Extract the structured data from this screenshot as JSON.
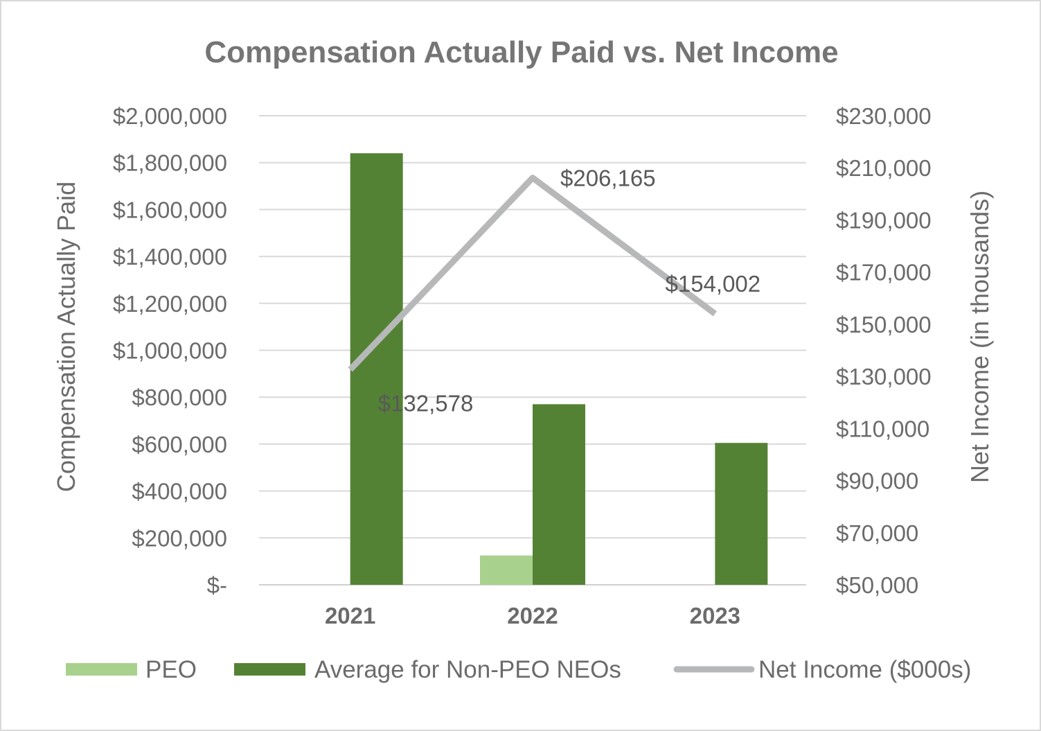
{
  "chart_data": {
    "type": "bar",
    "title": "Compensation Actually Paid vs. Net Income",
    "categories": [
      "2021",
      "2022",
      "2023"
    ],
    "y_left": {
      "label": "Compensation Actually Paid",
      "min": 0,
      "max": 2000000,
      "ticks": [
        "$-",
        "$200,000",
        "$400,000",
        "$600,000",
        "$800,000",
        "$1,000,000",
        "$1,200,000",
        "$1,400,000",
        "$1,600,000",
        "$1,800,000",
        "$2,000,000"
      ]
    },
    "y_right": {
      "label": "Net Income (in thousands)",
      "min": 50000,
      "max": 230000,
      "ticks": [
        "$50,000",
        "$70,000",
        "$90,000",
        "$110,000",
        "$130,000",
        "$150,000",
        "$170,000",
        "$190,000",
        "$210,000",
        "$230,000"
      ]
    },
    "grid": true,
    "legend_position": "bottom",
    "series": [
      {
        "name": "PEO",
        "type": "bar",
        "axis": "left",
        "color": "#a9d18e",
        "values": [
          0,
          125000,
          0
        ]
      },
      {
        "name": "Average for Non-PEO NEOs",
        "type": "bar",
        "axis": "left",
        "color": "#548235",
        "values": [
          1840000,
          770000,
          605000
        ]
      },
      {
        "name": "Net Income ($000s)",
        "type": "line",
        "axis": "right",
        "color": "#b7b8b9",
        "values": [
          132578,
          206165,
          154002
        ],
        "labels": [
          "$132,578",
          "$206,165",
          "$154,002"
        ]
      }
    ]
  }
}
